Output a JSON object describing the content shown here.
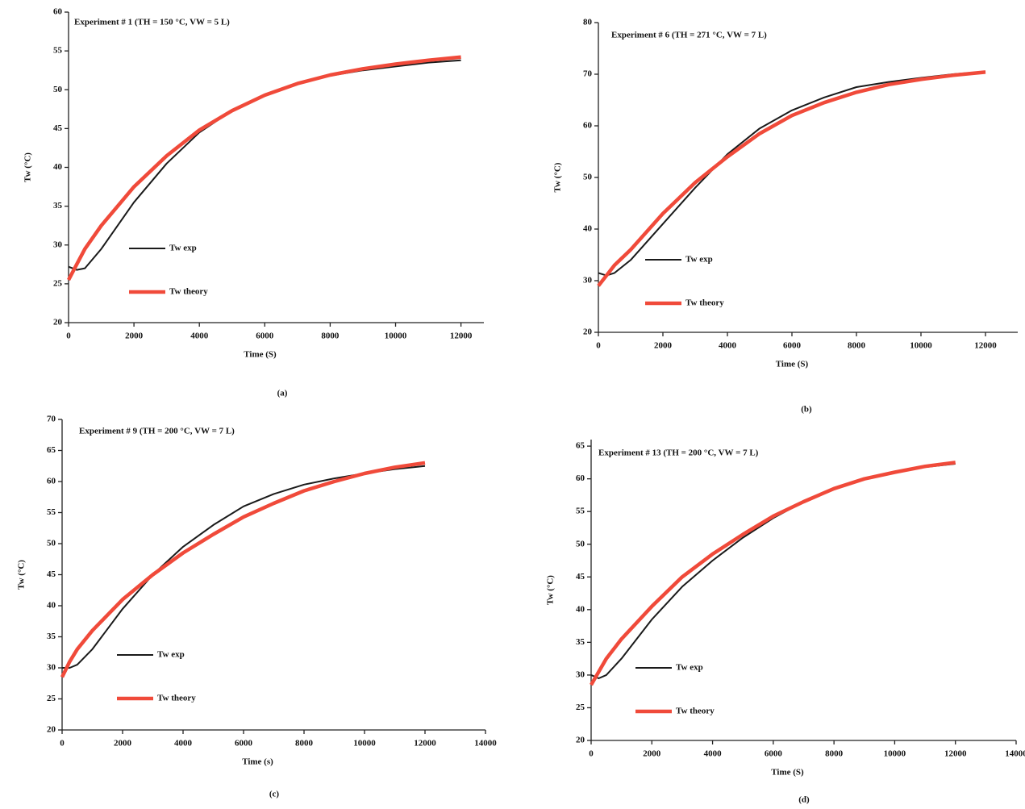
{
  "chart_data": [
    {
      "type": "line",
      "title": "Experiment # 1 (TH = 150 °C, VW = 5 L)",
      "x_label": "Time (S)",
      "y_label": "Tw (°C)",
      "caption": "(a)",
      "x": [
        0,
        250,
        500,
        1000,
        2000,
        3000,
        4000,
        5000,
        6000,
        7000,
        8000,
        9000,
        10000,
        11000,
        12000
      ],
      "series": [
        {
          "name": "Tw exp",
          "color": "#1a1a1a",
          "values": [
            27.2,
            26.8,
            27,
            29.5,
            35.5,
            40.5,
            44.5,
            47.3,
            49.3,
            50.8,
            51.8,
            52.5,
            53,
            53.5,
            53.8
          ]
        },
        {
          "name": "Tw theory",
          "color": "#f04a3a",
          "values": [
            25.5,
            27.5,
            29.5,
            32.5,
            37.5,
            41.5,
            44.8,
            47.3,
            49.3,
            50.8,
            51.9,
            52.7,
            53.3,
            53.8,
            54.2
          ]
        }
      ],
      "xlim": [
        0,
        12700
      ],
      "xticks": [
        0,
        2000,
        4000,
        6000,
        8000,
        10000,
        12000
      ],
      "ylim": [
        20,
        60
      ],
      "yticks": [
        20,
        25,
        30,
        35,
        40,
        45,
        50,
        55,
        60
      ]
    },
    {
      "type": "line",
      "title": "Experiment # 6 (TH = 271 °C, VW = 7 L)",
      "x_label": "Time (S)",
      "y_label": "Tw (°C)",
      "caption": "(b)",
      "x": [
        0,
        250,
        500,
        1000,
        2000,
        3000,
        4000,
        5000,
        6000,
        7000,
        8000,
        9000,
        10000,
        11000,
        12000
      ],
      "series": [
        {
          "name": "Tw exp",
          "color": "#1a1a1a",
          "values": [
            31.5,
            31,
            31.5,
            34,
            41,
            48,
            54.5,
            59.5,
            63,
            65.5,
            67.5,
            68.5,
            69.3,
            70,
            70.5
          ]
        },
        {
          "name": "Tw theory",
          "color": "#f04a3a",
          "values": [
            29,
            31,
            33,
            36,
            43,
            49,
            54,
            58.5,
            62,
            64.5,
            66.5,
            68,
            69,
            69.8,
            70.4
          ]
        }
      ],
      "xlim": [
        0,
        13000
      ],
      "xticks": [
        0,
        2000,
        4000,
        6000,
        8000,
        10000,
        12000
      ],
      "ylim": [
        20,
        80
      ],
      "yticks": [
        20,
        30,
        40,
        50,
        60,
        70,
        80
      ]
    },
    {
      "type": "line",
      "title": "Experiment # 9 (TH = 200 °C, VW = 7 L)",
      "x_label": "Time (s)",
      "y_label": "Tw (°C)",
      "caption": "(c)",
      "x": [
        0,
        250,
        500,
        1000,
        2000,
        3000,
        4000,
        5000,
        6000,
        7000,
        8000,
        9000,
        10000,
        11000,
        12000
      ],
      "series": [
        {
          "name": "Tw exp",
          "color": "#1a1a1a",
          "values": [
            30,
            30,
            30.5,
            33,
            39.5,
            45,
            49.5,
            53,
            56,
            58,
            59.5,
            60.5,
            61.3,
            62,
            62.5
          ]
        },
        {
          "name": "Tw theory",
          "color": "#f04a3a",
          "values": [
            28.5,
            31,
            33,
            36,
            41,
            45,
            48.5,
            51.5,
            54.3,
            56.5,
            58.5,
            60,
            61.3,
            62.3,
            63
          ]
        }
      ],
      "xlim": [
        0,
        14000
      ],
      "xticks": [
        0,
        2000,
        4000,
        6000,
        8000,
        10000,
        12000,
        14000
      ],
      "ylim": [
        20,
        70
      ],
      "yticks": [
        20,
        25,
        30,
        35,
        40,
        45,
        50,
        55,
        60,
        65,
        70
      ]
    },
    {
      "type": "line",
      "title": "Experiment # 13 (TH = 200 °C, VW = 7 L)",
      "x_label": "Time (S)",
      "y_label": "Tw (°C)",
      "caption": "(d)",
      "x": [
        0,
        250,
        500,
        1000,
        2000,
        3000,
        4000,
        5000,
        6000,
        7000,
        8000,
        9000,
        10000,
        11000,
        12000
      ],
      "series": [
        {
          "name": "Tw exp",
          "color": "#1a1a1a",
          "values": [
            30,
            29.5,
            30,
            32.5,
            38.5,
            43.5,
            47.5,
            51,
            54,
            56.5,
            58.5,
            60,
            61,
            61.8,
            62.3
          ]
        },
        {
          "name": "Tw theory",
          "color": "#f04a3a",
          "values": [
            28.5,
            30.5,
            32.5,
            35.5,
            40.5,
            45,
            48.5,
            51.5,
            54.3,
            56.5,
            58.5,
            60,
            61,
            61.9,
            62.5
          ]
        }
      ],
      "xlim": [
        0,
        14000
      ],
      "xticks": [
        0,
        2000,
        4000,
        6000,
        8000,
        10000,
        12000,
        14000
      ],
      "ylim": [
        20,
        66
      ],
      "yticks": [
        20,
        25,
        30,
        35,
        40,
        45,
        50,
        55,
        60,
        65
      ]
    }
  ]
}
